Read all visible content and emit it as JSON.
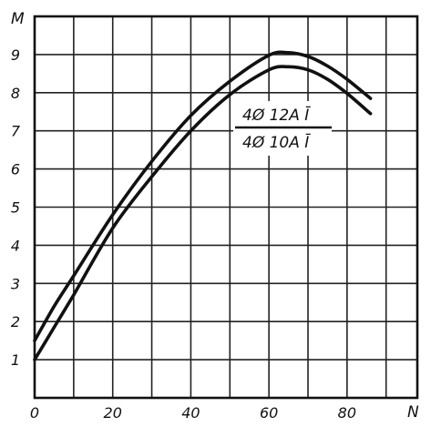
{
  "chart_data": {
    "type": "line",
    "xlabel": "N",
    "ylabel": "M",
    "xlim": [
      0,
      98
    ],
    "ylim": [
      0,
      10
    ],
    "x_ticks": [
      "0",
      "20",
      "40",
      "60",
      "80"
    ],
    "y_ticks": [
      "1",
      "2",
      "3",
      "4",
      "5",
      "6",
      "7",
      "8",
      "9"
    ],
    "grid": true,
    "annotation": {
      "numerator": "4Ø 12A Ī",
      "denominator": "4Ø 10A Ī"
    },
    "series": [
      {
        "label": "4Ø 12A Ī",
        "x": [
          0,
          5,
          10,
          20,
          30,
          40,
          50,
          60,
          65,
          70,
          75,
          80,
          86
        ],
        "y": [
          1.5,
          2.4,
          3.2,
          4.8,
          6.2,
          7.4,
          8.3,
          8.98,
          9.05,
          8.95,
          8.7,
          8.35,
          7.85
        ]
      },
      {
        "label": "4Ø 10A Ī",
        "x": [
          0,
          5,
          10,
          20,
          30,
          40,
          50,
          60,
          65,
          70,
          75,
          80,
          86
        ],
        "y": [
          1.0,
          1.85,
          2.7,
          4.45,
          5.8,
          7.0,
          7.95,
          8.6,
          8.68,
          8.6,
          8.35,
          7.98,
          7.45
        ]
      }
    ]
  }
}
